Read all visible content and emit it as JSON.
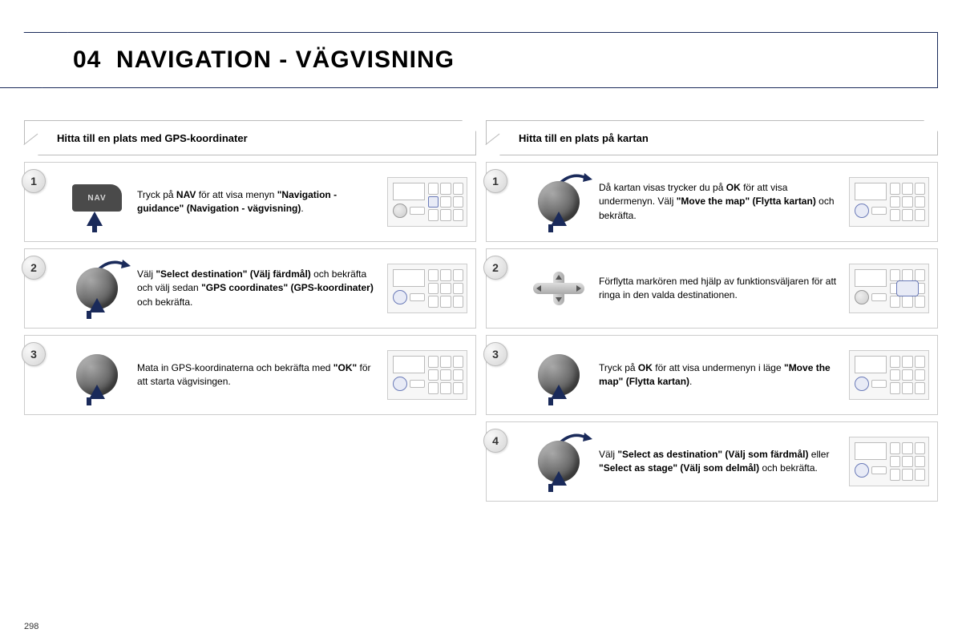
{
  "header": {
    "number": "04",
    "title": "NAVIGATION - VÄGVISNING"
  },
  "page_number": "298",
  "colors": {
    "accent_navy": "#1a2a5a",
    "border_gray": "#cccccc",
    "badge_text": "#333333",
    "bg": "#ffffff"
  },
  "left": {
    "heading": "Hitta till en plats med GPS-koordinater",
    "steps": [
      {
        "num": "1",
        "icon": "nav-button",
        "html": "Tryck på <b>NAV</b> för att visa menyn <b>\"Navigation - guidance\" (Navigation - vägvisning)</b>."
      },
      {
        "num": "2",
        "icon": "dial-turn",
        "html": "Välj <b>\"Select destination\" (Välj färdmål)</b> och bekräfta och välj sedan <b>\"GPS coordinates\" (GPS-koordinater)</b> och bekräfta."
      },
      {
        "num": "3",
        "icon": "dial-press",
        "html": "Mata in GPS-koordinaterna och bekräfta med <b>\"OK\"</b> för att starta vägvisingen."
      }
    ]
  },
  "right": {
    "heading": "Hitta till en plats på kartan",
    "steps": [
      {
        "num": "1",
        "icon": "dial-turn",
        "html": "Då kartan visas trycker du på <b>OK</b> för att visa undermenyn. Välj <b>\"Move the map\" (Flytta kartan)</b> och bekräfta."
      },
      {
        "num": "2",
        "icon": "dpad",
        "html": "Förflytta markören med hjälp av funktionsväljaren för att ringa in den valda destinationen."
      },
      {
        "num": "3",
        "icon": "dial-press",
        "html": "Tryck på <b>OK</b> för att visa undermenyn i läge <b>\"Move the map\" (Flytta kartan)</b>."
      },
      {
        "num": "4",
        "icon": "dial-turn",
        "html": "Välj <b>\"Select as destination\" (Välj som färdmål)</b> eller <b>\"Select as stage\" (Välj som delmål)</b> och bekräfta."
      }
    ]
  }
}
